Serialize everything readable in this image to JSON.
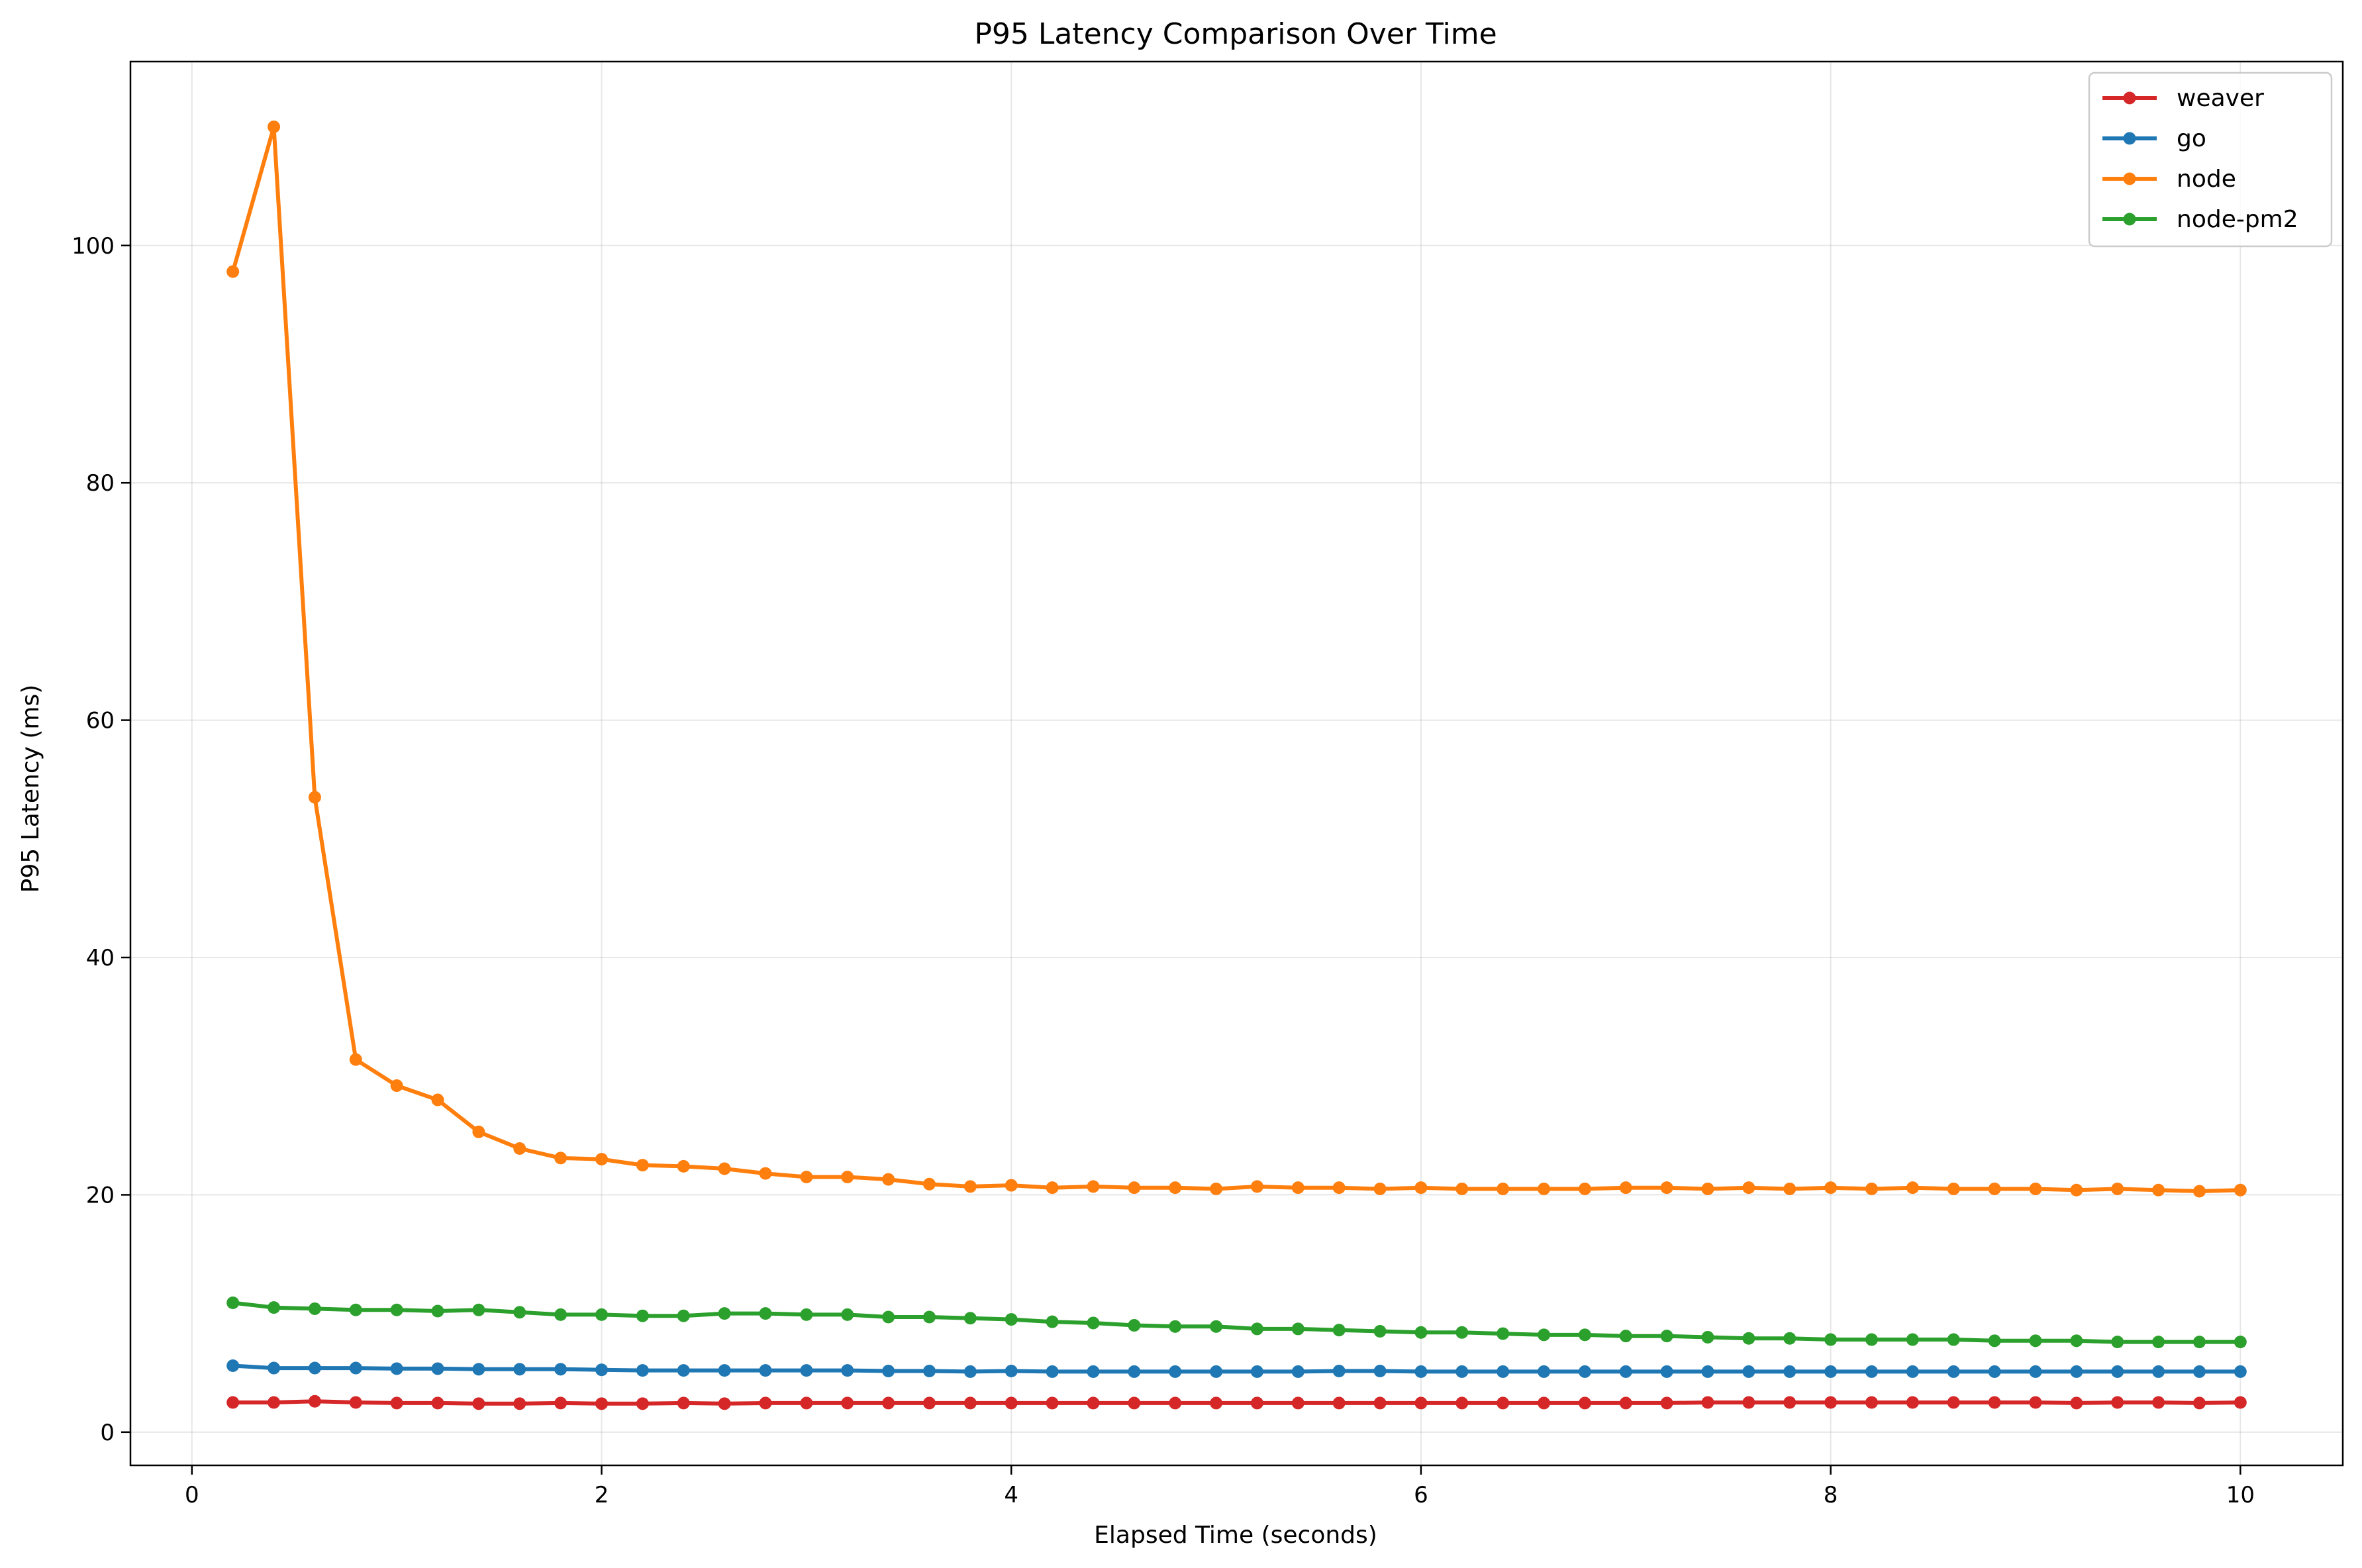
{
  "chart_data": {
    "type": "line",
    "title": "P95 Latency Comparison Over Time",
    "xlabel": "Elapsed Time (seconds)",
    "ylabel": "P95 Latency (ms)",
    "xlim": [
      -0.3,
      10.5
    ],
    "ylim": [
      -2.8,
      115.5
    ],
    "xticks": [
      0,
      2,
      4,
      6,
      8,
      10
    ],
    "yticks": [
      0,
      20,
      40,
      60,
      80,
      100
    ],
    "grid": true,
    "legend": "top-right",
    "x": [
      0.2,
      0.4,
      0.6,
      0.8,
      1.0,
      1.2,
      1.4,
      1.6,
      1.8,
      2.0,
      2.2,
      2.4,
      2.6,
      2.8,
      3.0,
      3.2,
      3.4,
      3.6,
      3.8,
      4.0,
      4.2,
      4.4,
      4.6,
      4.8,
      5.0,
      5.2,
      5.4,
      5.6,
      5.8,
      6.0,
      6.2,
      6.4,
      6.6,
      6.8,
      7.0,
      7.2,
      7.4,
      7.6,
      7.8,
      8.0,
      8.2,
      8.4,
      8.6,
      8.8,
      9.0,
      9.2,
      9.4,
      9.6,
      9.8,
      10.0
    ],
    "series": [
      {
        "name": "weaver",
        "color": "#d62728",
        "values": [
          2.5,
          2.5,
          2.6,
          2.5,
          2.45,
          2.45,
          2.4,
          2.4,
          2.45,
          2.4,
          2.4,
          2.45,
          2.4,
          2.45,
          2.45,
          2.45,
          2.45,
          2.45,
          2.45,
          2.45,
          2.45,
          2.45,
          2.45,
          2.45,
          2.45,
          2.45,
          2.45,
          2.45,
          2.45,
          2.45,
          2.45,
          2.45,
          2.45,
          2.45,
          2.45,
          2.45,
          2.5,
          2.5,
          2.5,
          2.5,
          2.5,
          2.5,
          2.5,
          2.5,
          2.5,
          2.45,
          2.5,
          2.5,
          2.45,
          2.5
        ]
      },
      {
        "name": "go",
        "color": "#1f77b4",
        "values": [
          5.6,
          5.4,
          5.4,
          5.4,
          5.35,
          5.35,
          5.3,
          5.3,
          5.3,
          5.25,
          5.2,
          5.2,
          5.2,
          5.2,
          5.2,
          5.2,
          5.15,
          5.15,
          5.1,
          5.15,
          5.1,
          5.1,
          5.1,
          5.1,
          5.1,
          5.1,
          5.1,
          5.15,
          5.15,
          5.1,
          5.1,
          5.1,
          5.1,
          5.1,
          5.1,
          5.1,
          5.1,
          5.1,
          5.1,
          5.1,
          5.1,
          5.1,
          5.1,
          5.1,
          5.1,
          5.1,
          5.1,
          5.1,
          5.1,
          5.1
        ]
      },
      {
        "name": "node",
        "color": "#ff7f0e",
        "values": [
          97.8,
          110.0,
          53.5,
          31.4,
          29.2,
          28.0,
          25.3,
          23.9,
          23.1,
          23.0,
          22.5,
          22.4,
          22.2,
          21.8,
          21.5,
          21.5,
          21.3,
          20.9,
          20.7,
          20.8,
          20.6,
          20.7,
          20.6,
          20.6,
          20.5,
          20.7,
          20.6,
          20.6,
          20.5,
          20.6,
          20.5,
          20.5,
          20.5,
          20.5,
          20.6,
          20.6,
          20.5,
          20.6,
          20.5,
          20.6,
          20.5,
          20.6,
          20.5,
          20.5,
          20.5,
          20.4,
          20.5,
          20.4,
          20.3,
          20.4
        ]
      },
      {
        "name": "node-pm2",
        "color": "#2ca02c",
        "values": [
          10.9,
          10.5,
          10.4,
          10.3,
          10.3,
          10.2,
          10.3,
          10.1,
          9.9,
          9.9,
          9.8,
          9.8,
          10.0,
          10.0,
          9.9,
          9.9,
          9.7,
          9.7,
          9.6,
          9.5,
          9.3,
          9.2,
          9.0,
          8.9,
          8.9,
          8.7,
          8.7,
          8.6,
          8.5,
          8.4,
          8.4,
          8.3,
          8.2,
          8.2,
          8.1,
          8.1,
          8.0,
          7.9,
          7.9,
          7.8,
          7.8,
          7.8,
          7.8,
          7.7,
          7.7,
          7.7,
          7.6,
          7.6,
          7.6,
          7.6
        ]
      }
    ]
  }
}
